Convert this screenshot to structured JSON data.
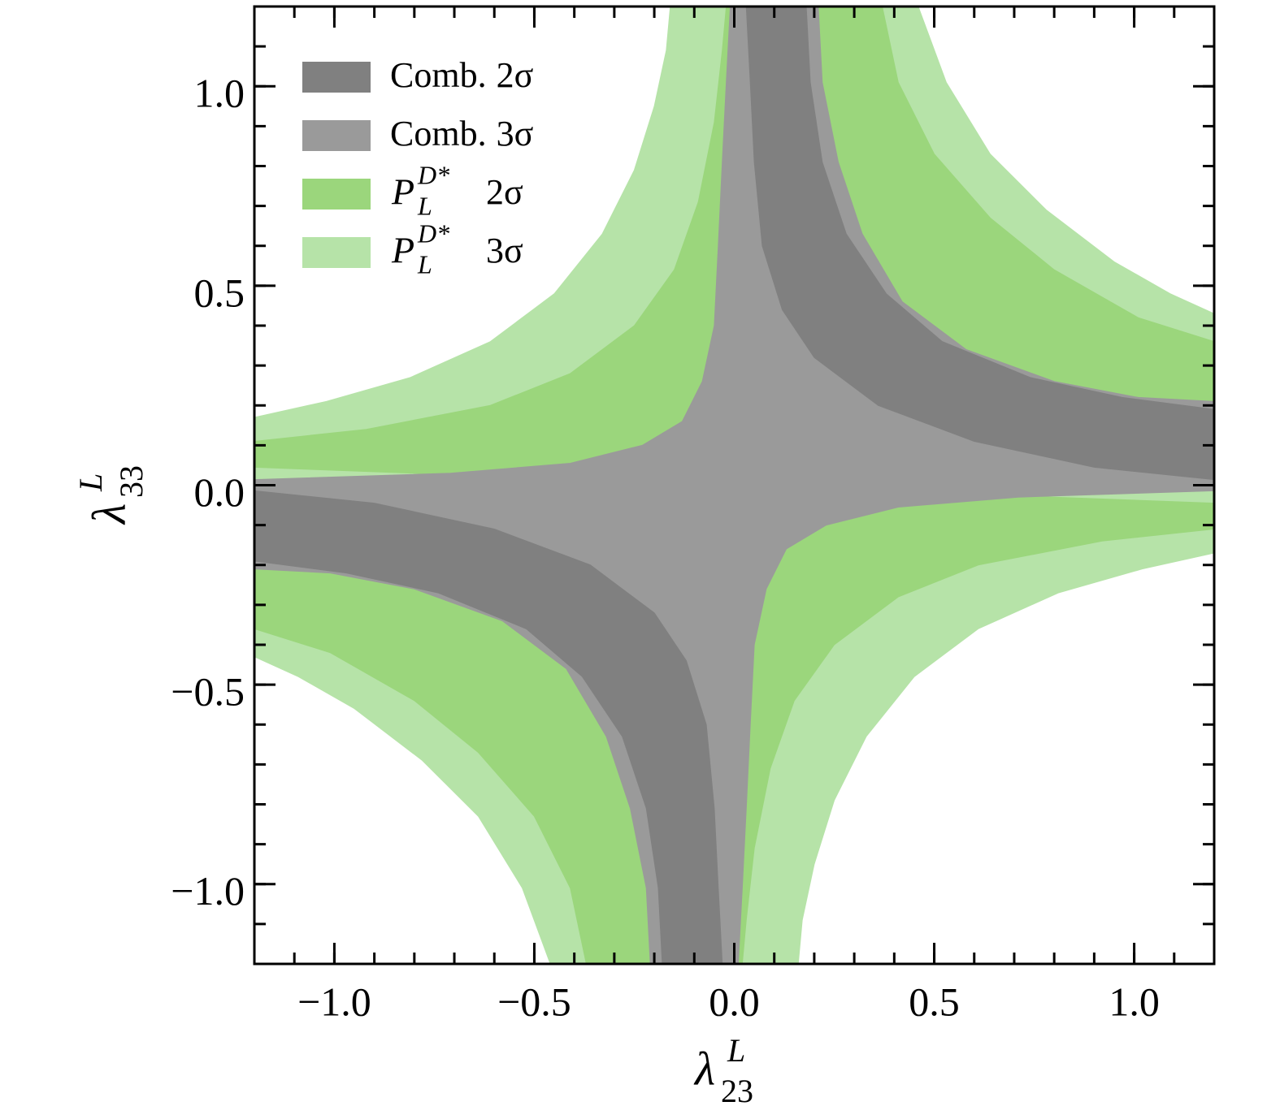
{
  "chart_data": {
    "type": "region",
    "xlabel": {
      "symbol": "λ",
      "sup": "L",
      "sub": "23"
    },
    "ylabel": {
      "symbol": "λ",
      "sup": "L",
      "sub": "33"
    },
    "xlim": [
      -1.2,
      1.2
    ],
    "ylim": [
      -1.2,
      1.2
    ],
    "xticks": [
      {
        "value": -1,
        "label": "−1.0"
      },
      {
        "value": -0.5,
        "label": "−0.5"
      },
      {
        "value": 0,
        "label": "0.0"
      },
      0.5,
      {
        "value": 1,
        "label": "1.0"
      }
    ],
    "yticks": [
      {
        "value": -1,
        "label": "−1.0"
      },
      {
        "value": -0.5,
        "label": "−0.5"
      },
      {
        "value": 0,
        "label": "0.0"
      },
      0.5,
      {
        "value": 1,
        "label": "1.0"
      }
    ],
    "xminor": 0.1,
    "yminor": 0.1,
    "legend": "upper left",
    "regions": [
      {
        "name": "P",
        "name_sub": "L",
        "name_sup": "D*",
        "level": "3σ",
        "color": "#b6e3a8",
        "polygons": [
          {
            "x": [
              -1.2,
              -1.02,
              -0.81,
              -0.61,
              -0.45,
              -0.33,
              -0.25,
              -0.2,
              -0.17,
              -0.16,
              0.46,
              0.53,
              0.64,
              0.78,
              0.95,
              1.09,
              1.2,
              1.2,
              0,
              -1.2
            ],
            "y": [
              0.17,
              0.21,
              0.27,
              0.36,
              0.48,
              0.63,
              0.79,
              0.95,
              1.09,
              1.2,
              1.2,
              1.01,
              0.83,
              0.69,
              0.56,
              0.48,
              0.43,
              0.01,
              0,
              0.01
            ]
          },
          {
            "x": [
              1.2,
              1.02,
              0.81,
              0.61,
              0.45,
              0.33,
              0.25,
              0.2,
              0.17,
              0.16,
              -0.46,
              -0.53,
              -0.64,
              -0.78,
              -0.95,
              -1.09,
              -1.2,
              -1.2,
              0,
              1.2
            ],
            "y": [
              -0.17,
              -0.21,
              -0.27,
              -0.36,
              -0.48,
              -0.63,
              -0.79,
              -0.95,
              -1.09,
              -1.2,
              -1.2,
              -1.01,
              -0.83,
              -0.69,
              -0.56,
              -0.48,
              -0.43,
              -0.01,
              0,
              -0.01
            ]
          }
        ]
      },
      {
        "name": "P",
        "name_sub": "L",
        "name_sup": "D*",
        "level": "2σ",
        "color": "#9bd67c",
        "polygons": [
          {
            "x": [
              -1.2,
              -0.92,
              -0.61,
              -0.41,
              -0.25,
              -0.15,
              -0.09,
              -0.05,
              -0.03,
              -0.02,
              0.37,
              0.41,
              0.5,
              0.64,
              0.8,
              1.01,
              1.2,
              1.2,
              0,
              -1.2
            ],
            "y": [
              0.11,
              0.14,
              0.2,
              0.28,
              0.4,
              0.54,
              0.71,
              0.91,
              1.09,
              1.2,
              1.2,
              1.01,
              0.83,
              0.67,
              0.54,
              0.42,
              0.36,
              0.01,
              0,
              0.045
            ]
          },
          {
            "x": [
              1.2,
              0.92,
              0.61,
              0.41,
              0.25,
              0.15,
              0.09,
              0.05,
              0.03,
              0.02,
              -0.37,
              -0.41,
              -0.5,
              -0.64,
              -0.8,
              -1.01,
              -1.2,
              -1.2,
              0,
              1.2
            ],
            "y": [
              -0.11,
              -0.14,
              -0.2,
              -0.28,
              -0.4,
              -0.54,
              -0.71,
              -0.91,
              -1.09,
              -1.2,
              -1.2,
              -1.01,
              -0.83,
              -0.67,
              -0.54,
              -0.42,
              -0.36,
              -0.01,
              0,
              -0.045
            ]
          }
        ]
      },
      {
        "name": "Comb.",
        "level": "3σ",
        "color": "#9a9a9a",
        "polygons": [
          {
            "x": [
              -0.01,
              -0.02,
              -0.03,
              -0.04,
              -0.05,
              -0.08,
              -0.13,
              -0.23,
              -0.41,
              -0.71,
              -1.2,
              -1.2,
              -1.01,
              -0.8,
              -0.58,
              -0.42,
              -0.32,
              -0.26,
              -0.22,
              -0.21,
              0.01,
              0.02,
              0.03,
              0.04,
              0.05,
              0.08,
              0.13,
              0.23,
              0.41,
              0.71,
              1.2,
              1.2,
              1.01,
              0.8,
              0.58,
              0.42,
              0.32,
              0.26,
              0.22,
              0.21
            ],
            "y": [
              1.2,
              1.01,
              0.81,
              0.6,
              0.4,
              0.26,
              0.16,
              0.1,
              0.055,
              0.03,
              0.014,
              -0.21,
              -0.22,
              -0.26,
              -0.34,
              -0.46,
              -0.63,
              -0.81,
              -1.01,
              -1.2,
              -1.2,
              -1.01,
              -0.81,
              -0.6,
              -0.4,
              -0.26,
              -0.16,
              -0.1,
              -0.055,
              -0.03,
              -0.014,
              0.21,
              0.22,
              0.26,
              0.34,
              0.46,
              0.63,
              0.81,
              1.01,
              1.2
            ]
          }
        ]
      },
      {
        "name": "Comb.",
        "level": "2σ",
        "color": "#808080",
        "polygons": [
          {
            "x": [
              0.03,
              0.04,
              0.05,
              0.07,
              0.12,
              0.2,
              0.36,
              0.6,
              0.9,
              1.2,
              1.2,
              0.97,
              0.74,
              0.52,
              0.38,
              0.28,
              0.22,
              0.19,
              0.18
            ],
            "y": [
              1.2,
              1.01,
              0.81,
              0.6,
              0.44,
              0.32,
              0.2,
              0.11,
              0.045,
              0.014,
              0.19,
              0.22,
              0.27,
              0.36,
              0.48,
              0.63,
              0.81,
              1.01,
              1.2
            ]
          },
          {
            "x": [
              -0.03,
              -0.04,
              -0.05,
              -0.07,
              -0.12,
              -0.2,
              -0.36,
              -0.6,
              -0.9,
              -1.2,
              -1.2,
              -0.97,
              -0.74,
              -0.52,
              -0.38,
              -0.28,
              -0.22,
              -0.19,
              -0.18
            ],
            "y": [
              -1.2,
              -1.01,
              -0.81,
              -0.6,
              -0.44,
              -0.32,
              -0.2,
              -0.11,
              -0.045,
              -0.014,
              -0.19,
              -0.22,
              -0.27,
              -0.36,
              -0.48,
              -0.63,
              -0.81,
              -1.01,
              -1.2
            ]
          }
        ]
      }
    ]
  }
}
